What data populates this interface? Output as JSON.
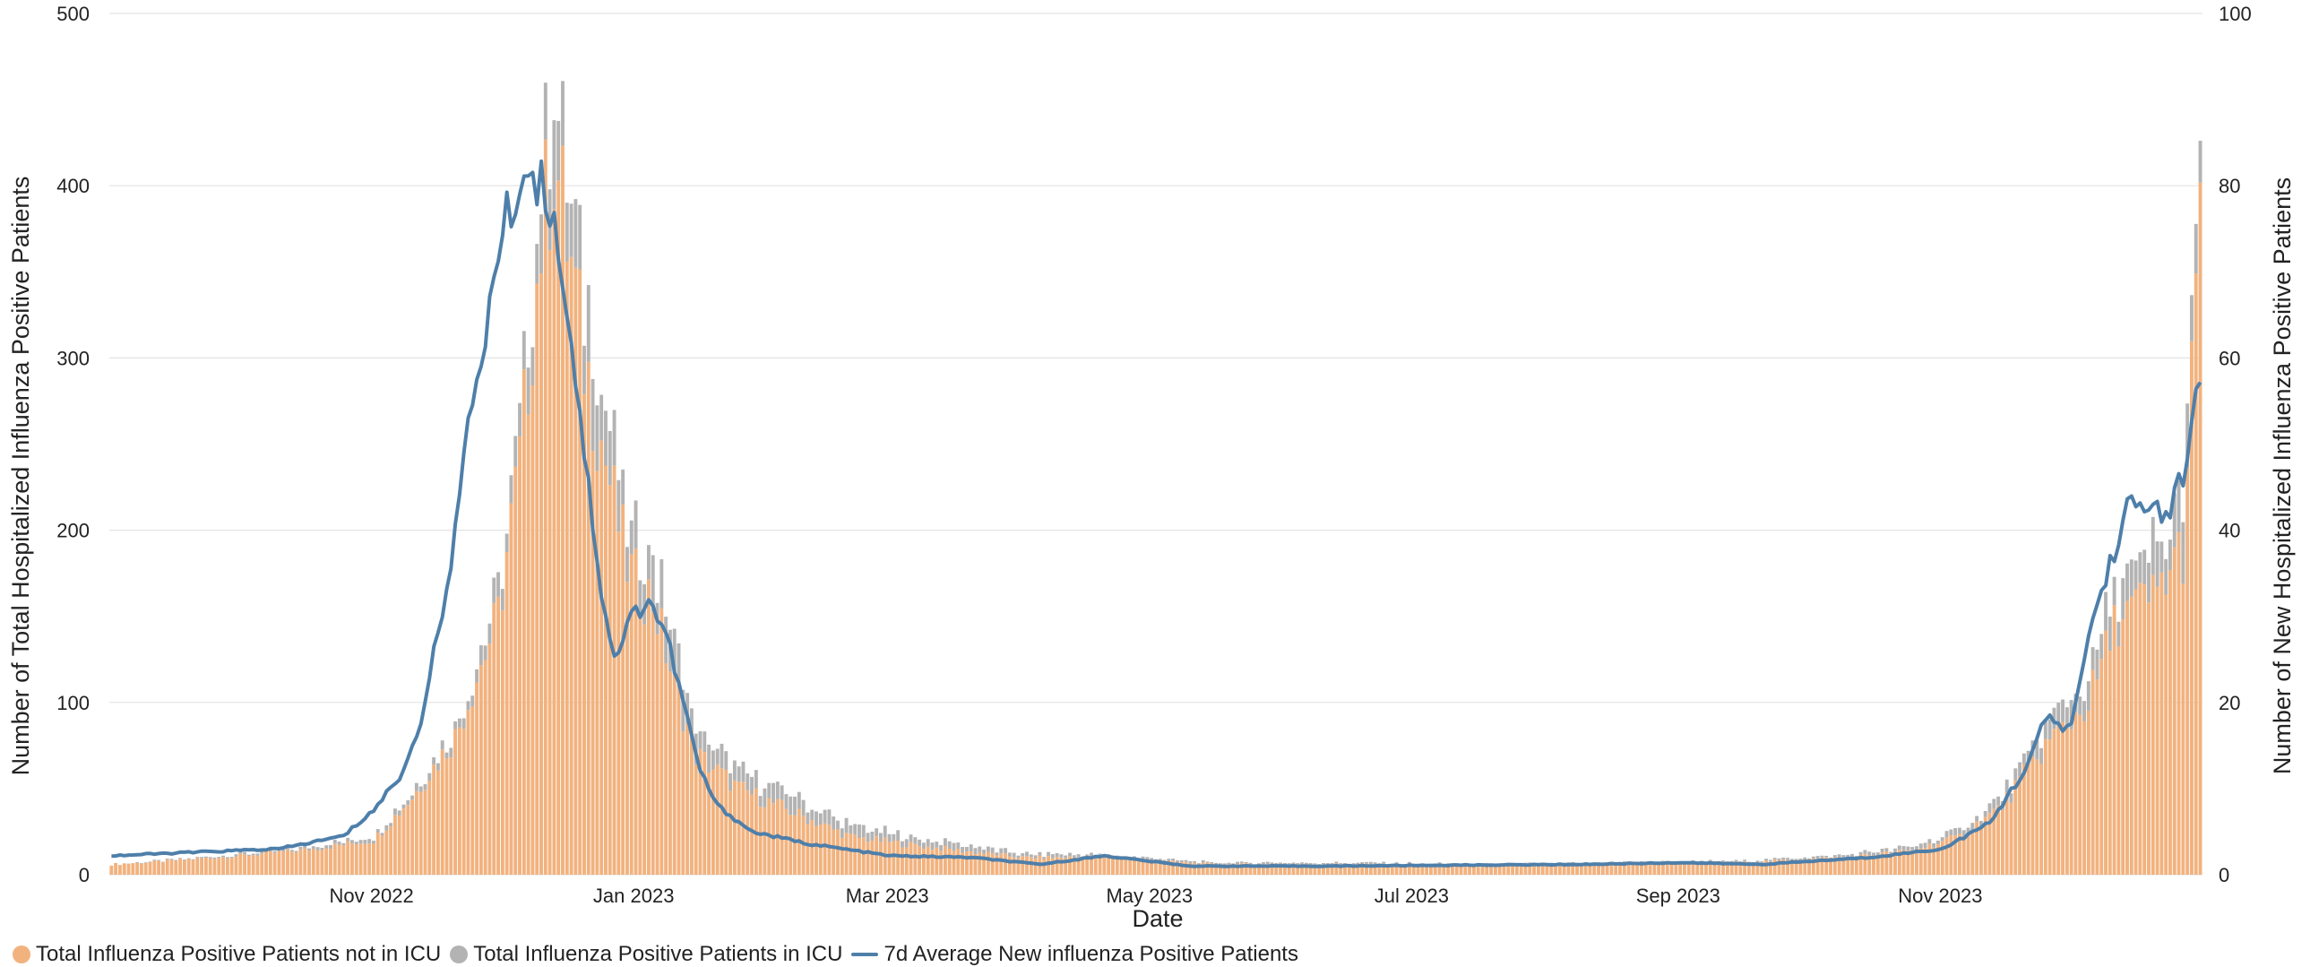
{
  "chart_data": {
    "type": "bar",
    "x_start": "2022-09-01",
    "x_end": "2023-12-31",
    "xlabel": "Date",
    "ylabel_left": "Number of Total Hospitalized Influenza Positive Patients",
    "ylabel_right": "Number of New Hospitalized Influenza Positive Patients",
    "ylim_left": [
      0,
      500
    ],
    "ylim_right": [
      0,
      100
    ],
    "yticks_left": [
      0,
      100,
      200,
      300,
      400,
      500
    ],
    "yticks_right": [
      0,
      20,
      40,
      60,
      80,
      100
    ],
    "xticks": [
      {
        "date": "2022-11-01",
        "label": "Nov 2022"
      },
      {
        "date": "2023-01-01",
        "label": "Jan 2023"
      },
      {
        "date": "2023-03-01",
        "label": "Mar 2023"
      },
      {
        "date": "2023-05-01",
        "label": "May 2023"
      },
      {
        "date": "2023-07-01",
        "label": "Jul 2023"
      },
      {
        "date": "2023-09-01",
        "label": "Sep 2023"
      },
      {
        "date": "2023-11-01",
        "label": "Nov 2023"
      }
    ],
    "grid": true,
    "stacked": true,
    "legend_position": "bottom-left",
    "series": [
      {
        "name": "Total Influenza Positive Patients not in ICU",
        "kind": "bar",
        "axis": "left",
        "color": "#f2b27e",
        "points": [
          [
            "2022-09-01",
            6
          ],
          [
            "2022-09-15",
            8
          ],
          [
            "2022-10-01",
            11
          ],
          [
            "2022-10-15",
            14
          ],
          [
            "2022-11-01",
            20
          ],
          [
            "2022-11-10",
            45
          ],
          [
            "2022-11-20",
            80
          ],
          [
            "2022-11-30",
            150
          ],
          [
            "2022-12-05",
            240
          ],
          [
            "2022-12-10",
            370
          ],
          [
            "2022-12-13",
            420
          ],
          [
            "2022-12-16",
            370
          ],
          [
            "2022-12-20",
            300
          ],
          [
            "2022-12-25",
            240
          ],
          [
            "2022-12-30",
            180
          ],
          [
            "2023-01-01",
            170
          ],
          [
            "2023-01-05",
            160
          ],
          [
            "2023-01-10",
            110
          ],
          [
            "2023-01-15",
            70
          ],
          [
            "2023-01-25",
            50
          ],
          [
            "2023-02-05",
            38
          ],
          [
            "2023-02-20",
            22
          ],
          [
            "2023-03-10",
            16
          ],
          [
            "2023-04-01",
            10
          ],
          [
            "2023-04-20",
            10
          ],
          [
            "2023-05-15",
            6
          ],
          [
            "2023-06-15",
            6
          ],
          [
            "2023-07-15",
            5
          ],
          [
            "2023-08-15",
            6
          ],
          [
            "2023-09-15",
            7
          ],
          [
            "2023-10-10",
            10
          ],
          [
            "2023-10-25",
            14
          ],
          [
            "2023-11-05",
            22
          ],
          [
            "2023-11-15",
            40
          ],
          [
            "2023-11-25",
            75
          ],
          [
            "2023-12-05",
            100
          ],
          [
            "2023-12-12",
            150
          ],
          [
            "2023-12-20",
            160
          ],
          [
            "2023-12-27",
            190
          ],
          [
            "2023-12-31",
            375
          ]
        ]
      },
      {
        "name": "Total Influenza Positive Patients in ICU",
        "kind": "bar",
        "axis": "left",
        "color": "#b3b3b3",
        "points": [
          [
            "2022-09-01",
            0
          ],
          [
            "2022-10-01",
            1
          ],
          [
            "2022-11-01",
            2
          ],
          [
            "2022-11-20",
            5
          ],
          [
            "2022-12-05",
            15
          ],
          [
            "2022-12-13",
            40
          ],
          [
            "2022-12-20",
            35
          ],
          [
            "2022-12-30",
            30
          ],
          [
            "2023-01-05",
            25
          ],
          [
            "2023-01-15",
            15
          ],
          [
            "2023-01-25",
            10
          ],
          [
            "2023-02-10",
            8
          ],
          [
            "2023-03-01",
            5
          ],
          [
            "2023-04-01",
            2
          ],
          [
            "2023-05-15",
            1
          ],
          [
            "2023-09-15",
            1
          ],
          [
            "2023-10-25",
            2
          ],
          [
            "2023-11-15",
            5
          ],
          [
            "2023-12-05",
            15
          ],
          [
            "2023-12-20",
            25
          ],
          [
            "2023-12-31",
            30
          ]
        ]
      },
      {
        "name": "7d Average New influenza Positive Patients",
        "kind": "line",
        "axis": "right",
        "color": "#4e7faa",
        "points": [
          [
            "2022-09-01",
            2.2
          ],
          [
            "2022-09-20",
            2.6
          ],
          [
            "2022-10-10",
            3.0
          ],
          [
            "2022-10-25",
            4.5
          ],
          [
            "2022-11-01",
            7.5
          ],
          [
            "2022-11-08",
            12
          ],
          [
            "2022-11-12",
            18
          ],
          [
            "2022-11-16",
            28
          ],
          [
            "2022-11-20",
            40
          ],
          [
            "2022-11-24",
            55
          ],
          [
            "2022-11-27",
            63
          ],
          [
            "2022-12-01",
            75
          ],
          [
            "2022-12-05",
            80
          ],
          [
            "2022-12-08",
            82
          ],
          [
            "2022-12-12",
            78
          ],
          [
            "2022-12-15",
            70
          ],
          [
            "2022-12-18",
            58
          ],
          [
            "2022-12-21",
            45
          ],
          [
            "2022-12-24",
            33
          ],
          [
            "2022-12-27",
            25
          ],
          [
            "2022-12-31",
            30
          ],
          [
            "2023-01-04",
            32
          ],
          [
            "2023-01-08",
            28
          ],
          [
            "2023-01-12",
            20
          ],
          [
            "2023-01-16",
            12
          ],
          [
            "2023-01-20",
            8
          ],
          [
            "2023-01-28",
            5
          ],
          [
            "2023-02-10",
            3.6
          ],
          [
            "2023-03-01",
            2.2
          ],
          [
            "2023-03-20",
            2.0
          ],
          [
            "2023-04-05",
            1.2
          ],
          [
            "2023-04-20",
            2.2
          ],
          [
            "2023-05-10",
            1.0
          ],
          [
            "2023-06-10",
            1.0
          ],
          [
            "2023-07-10",
            1.1
          ],
          [
            "2023-08-10",
            1.2
          ],
          [
            "2023-09-01",
            1.4
          ],
          [
            "2023-09-20",
            1.2
          ],
          [
            "2023-10-15",
            2.0
          ],
          [
            "2023-11-01",
            3.0
          ],
          [
            "2023-11-12",
            6.0
          ],
          [
            "2023-11-20",
            12
          ],
          [
            "2023-11-25",
            18
          ],
          [
            "2023-12-01",
            17
          ],
          [
            "2023-12-05",
            28
          ],
          [
            "2023-12-10",
            36
          ],
          [
            "2023-12-14",
            43
          ],
          [
            "2023-12-17",
            42
          ],
          [
            "2023-12-20",
            43
          ],
          [
            "2023-12-24",
            42
          ],
          [
            "2023-12-28",
            48
          ],
          [
            "2023-12-31",
            58
          ]
        ]
      }
    ]
  }
}
